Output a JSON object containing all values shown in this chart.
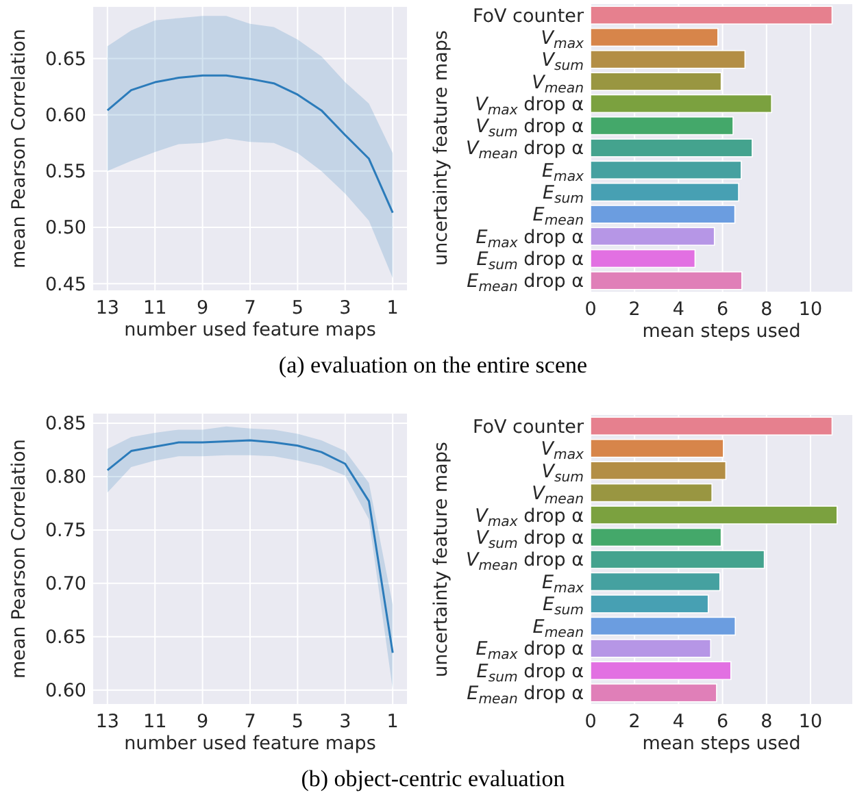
{
  "chart_data": [
    {
      "type": "line",
      "xlabel": "number used feature maps",
      "ylabel": "mean Pearson Correlation",
      "x": [
        13,
        12,
        11,
        10,
        9,
        8,
        7,
        6,
        5,
        4,
        3,
        2,
        1
      ],
      "series": [
        {
          "color": "#2b7bba",
          "values": [
            0.604,
            0.622,
            0.629,
            0.633,
            0.635,
            0.635,
            0.632,
            0.628,
            0.618,
            0.604,
            0.582,
            0.561,
            0.513
          ],
          "lower": [
            0.55,
            0.559,
            0.567,
            0.574,
            0.575,
            0.579,
            0.576,
            0.575,
            0.566,
            0.55,
            0.53,
            0.506,
            0.455
          ],
          "upper": [
            0.661,
            0.675,
            0.684,
            0.686,
            0.688,
            0.688,
            0.681,
            0.678,
            0.667,
            0.652,
            0.629,
            0.61,
            0.566
          ]
        }
      ],
      "xlim": [
        13.6,
        0.4
      ],
      "xticks": [
        13,
        11,
        9,
        7,
        5,
        3,
        1
      ],
      "ylim": [
        0.444,
        0.696
      ],
      "yticks": [
        0.45,
        {
          "value": 0.5,
          "label": "0.50"
        },
        0.55,
        {
          "value": 0.6,
          "label": "0.60"
        },
        0.65
      ],
      "grid": true,
      "annotations": [
        "(a) evaluation on the entire scene"
      ]
    },
    {
      "type": "bar",
      "orientation": "horizontal",
      "xlabel": "mean steps used",
      "ylabel": "uncertainty feature maps",
      "categories": [
        "FoV counter",
        "V$_{max}$",
        "V$_{sum}$",
        "V$_{mean}$",
        "V$_{max}$ drop α",
        "V$_{sum}$ drop α",
        "V$_{mean}$ drop α",
        "E$_{max}$",
        "E$_{sum}$",
        "E$_{mean}$",
        "E$_{max}$ drop α",
        "E$_{sum}$ drop α",
        "E$_{mean}$ drop α"
      ],
      "values": [
        10.98,
        5.79,
        7.02,
        5.94,
        8.23,
        6.48,
        7.35,
        6.85,
        6.73,
        6.56,
        5.63,
        4.75,
        6.88
      ],
      "colors": [
        "#e6808e",
        "#d7854a",
        "#b38e45",
        "#999641",
        "#7ba13f",
        "#44a86a",
        "#44a38e",
        "#45a1a0",
        "#47a0b3",
        "#6b9de0",
        "#b696e6",
        "#e270e2",
        "#e07fb8"
      ],
      "xlim": [
        0,
        11.9
      ],
      "xticks": [
        0,
        2,
        4,
        6,
        8,
        10
      ],
      "grid": "x"
    },
    {
      "type": "line",
      "xlabel": "number used feature maps",
      "ylabel": "mean Pearson Correlation",
      "x": [
        13,
        12,
        11,
        10,
        9,
        8,
        7,
        6,
        5,
        4,
        3,
        2,
        1
      ],
      "series": [
        {
          "color": "#2b7bba",
          "values": [
            0.806,
            0.824,
            0.828,
            0.832,
            0.832,
            0.833,
            0.834,
            0.832,
            0.829,
            0.823,
            0.812,
            0.777,
            0.635
          ],
          "lower": [
            0.785,
            0.809,
            0.815,
            0.819,
            0.819,
            0.82,
            0.82,
            0.819,
            0.815,
            0.81,
            0.801,
            0.76,
            0.601
          ],
          "upper": [
            0.826,
            0.837,
            0.841,
            0.844,
            0.844,
            0.847,
            0.845,
            0.844,
            0.84,
            0.834,
            0.824,
            0.794,
            0.68
          ]
        }
      ],
      "xlim": [
        13.6,
        0.4
      ],
      "xticks": [
        13,
        11,
        9,
        7,
        5,
        3,
        1
      ],
      "ylim": [
        0.587,
        0.859
      ],
      "yticks": [
        {
          "value": 0.6,
          "label": "0.60"
        },
        0.65,
        {
          "value": 0.7,
          "label": "0.70"
        },
        0.75,
        {
          "value": 0.8,
          "label": "0.80"
        },
        0.85
      ],
      "grid": true,
      "annotations": [
        "(b) object-centric evaluation"
      ]
    },
    {
      "type": "bar",
      "orientation": "horizontal",
      "xlabel": "mean steps used",
      "ylabel": "uncertainty feature maps",
      "categories": [
        "FoV counter",
        "V$_{max}$",
        "V$_{sum}$",
        "V$_{mean}$",
        "V$_{max}$ drop α",
        "V$_{sum}$ drop α",
        "V$_{mean}$ drop α",
        "E$_{max}$",
        "E$_{sum}$",
        "E$_{mean}$",
        "E$_{max}$ drop α",
        "E$_{sum}$ drop α",
        "E$_{mean}$ drop α"
      ],
      "values": [
        10.98,
        6.04,
        6.15,
        5.52,
        11.21,
        5.94,
        7.9,
        5.88,
        5.35,
        6.58,
        5.46,
        6.38,
        5.73
      ],
      "colors": [
        "#e6808e",
        "#d7854a",
        "#b38e45",
        "#999641",
        "#7ba13f",
        "#44a86a",
        "#44a38e",
        "#45a1a0",
        "#47a0b3",
        "#6b9de0",
        "#b696e6",
        "#e270e2",
        "#e07fb8"
      ],
      "xlim": [
        0,
        11.9
      ],
      "xticks": [
        0,
        2,
        4,
        6,
        8,
        10
      ],
      "grid": "x"
    }
  ]
}
